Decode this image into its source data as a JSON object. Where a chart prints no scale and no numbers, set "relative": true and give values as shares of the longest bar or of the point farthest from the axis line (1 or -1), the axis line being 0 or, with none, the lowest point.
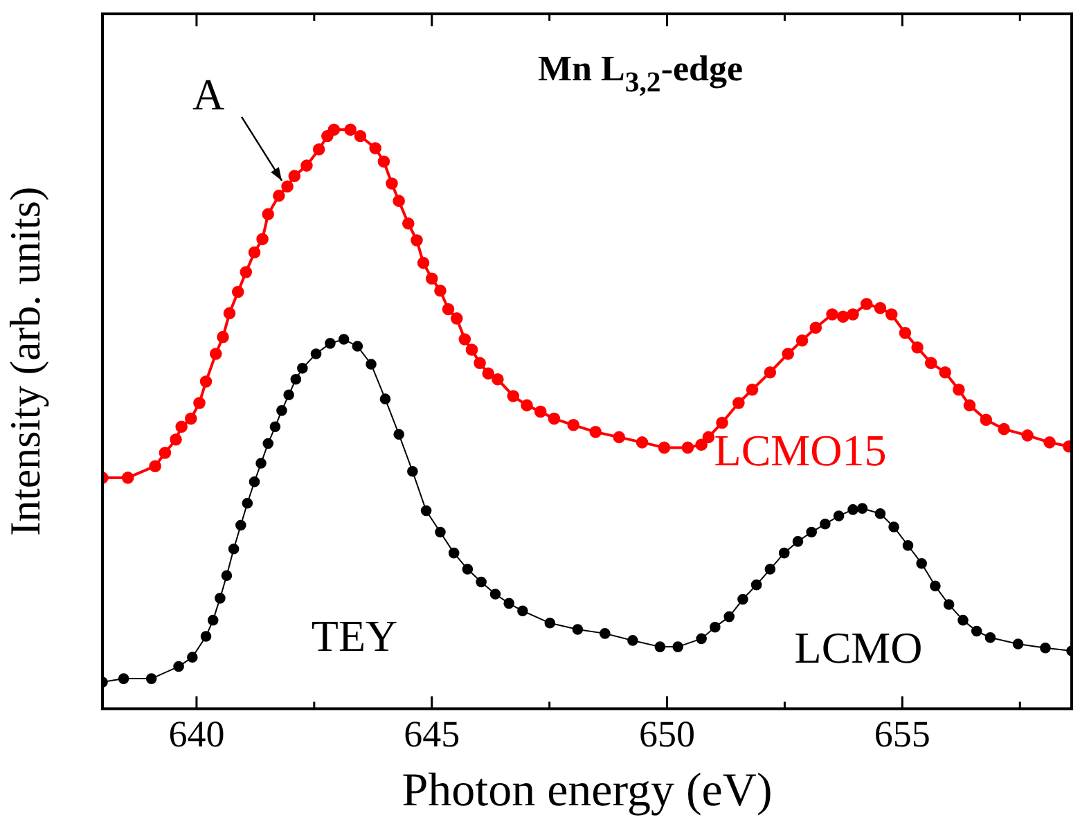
{
  "chart_data": {
    "type": "line",
    "title": "Mn L$_{3,2}$-edge",
    "xlabel": "Photon energy (eV)",
    "ylabel": "Intensity (arb. units)",
    "relative": true,
    "xlim": [
      638,
      658.6
    ],
    "xticks": [
      640,
      {
        "value": 642.5,
        "label": null
      },
      645,
      {
        "value": 647.5,
        "label": null
      },
      650,
      {
        "value": 652.5,
        "label": null
      },
      655,
      {
        "value": 657.5,
        "label": null
      }
    ],
    "grid": false,
    "legend": false,
    "marker": "circle",
    "line_style": "solid",
    "annotations": [
      {
        "text": "A",
        "x": 641.9,
        "y": 0.9
      },
      "TEY"
    ],
    "series": [
      {
        "name": "LCMO15",
        "color": "#ff0000",
        "x": [
          638.0,
          638.54,
          639.12,
          639.33,
          639.56,
          639.68,
          639.88,
          640.06,
          640.2,
          640.41,
          640.56,
          640.7,
          640.88,
          641.05,
          641.23,
          641.4,
          641.52,
          641.75,
          641.93,
          642.08,
          642.34,
          642.6,
          642.78,
          642.92,
          643.27,
          643.48,
          643.8,
          643.98,
          644.15,
          644.3,
          644.5,
          644.68,
          644.82,
          645.0,
          645.18,
          645.35,
          645.53,
          645.7,
          645.85,
          646.02,
          646.2,
          646.4,
          646.73,
          647.02,
          647.31,
          647.6,
          648.01,
          648.48,
          648.98,
          649.47,
          649.94,
          650.44,
          650.73,
          650.88,
          651.17,
          651.52,
          651.81,
          652.19,
          652.57,
          652.87,
          653.16,
          653.51,
          653.74,
          653.95,
          654.24,
          654.53,
          654.77,
          655.06,
          655.32,
          655.61,
          655.91,
          656.2,
          656.43,
          656.78,
          657.16,
          657.66,
          658.13,
          658.54
        ],
        "values": [
          0.399,
          0.399,
          0.419,
          0.442,
          0.465,
          0.487,
          0.501,
          0.528,
          0.565,
          0.613,
          0.642,
          0.683,
          0.72,
          0.754,
          0.788,
          0.811,
          0.854,
          0.886,
          0.902,
          0.92,
          0.938,
          0.966,
          0.989,
          1.0,
          1.0,
          0.989,
          0.968,
          0.945,
          0.907,
          0.877,
          0.838,
          0.809,
          0.77,
          0.743,
          0.722,
          0.69,
          0.674,
          0.638,
          0.62,
          0.597,
          0.579,
          0.569,
          0.54,
          0.524,
          0.513,
          0.501,
          0.49,
          0.478,
          0.469,
          0.46,
          0.451,
          0.451,
          0.456,
          0.469,
          0.494,
          0.528,
          0.551,
          0.581,
          0.613,
          0.636,
          0.658,
          0.681,
          0.677,
          0.681,
          0.699,
          0.692,
          0.681,
          0.649,
          0.624,
          0.597,
          0.581,
          0.551,
          0.524,
          0.499,
          0.483,
          0.472,
          0.46,
          0.453
        ]
      },
      {
        "name": "LCMO",
        "color": "#000000",
        "x": [
          638.0,
          638.45,
          639.04,
          639.62,
          639.91,
          640.2,
          640.35,
          640.5,
          640.64,
          640.79,
          640.94,
          641.08,
          641.23,
          641.37,
          641.52,
          641.67,
          641.81,
          641.96,
          642.11,
          642.25,
          642.54,
          642.84,
          643.13,
          643.42,
          643.71,
          644.01,
          644.3,
          644.59,
          644.88,
          645.18,
          645.47,
          645.76,
          646.05,
          646.35,
          646.64,
          646.93,
          647.51,
          648.1,
          648.68,
          649.27,
          649.85,
          650.23,
          650.73,
          651.02,
          651.32,
          651.61,
          651.9,
          652.19,
          652.49,
          652.78,
          653.07,
          653.36,
          653.65,
          653.95,
          654.15,
          654.53,
          654.82,
          655.12,
          655.41,
          655.7,
          655.99,
          656.29,
          656.58,
          656.87,
          657.46,
          658.04,
          658.6
        ],
        "values": [
          0.046,
          0.052,
          0.052,
          0.073,
          0.089,
          0.125,
          0.153,
          0.191,
          0.23,
          0.276,
          0.317,
          0.355,
          0.392,
          0.424,
          0.458,
          0.487,
          0.515,
          0.542,
          0.569,
          0.588,
          0.613,
          0.631,
          0.638,
          0.626,
          0.595,
          0.535,
          0.474,
          0.41,
          0.342,
          0.305,
          0.269,
          0.241,
          0.219,
          0.198,
          0.182,
          0.169,
          0.148,
          0.137,
          0.13,
          0.118,
          0.107,
          0.107,
          0.121,
          0.141,
          0.159,
          0.189,
          0.214,
          0.241,
          0.269,
          0.289,
          0.305,
          0.319,
          0.333,
          0.344,
          0.346,
          0.337,
          0.314,
          0.282,
          0.251,
          0.212,
          0.18,
          0.153,
          0.134,
          0.123,
          0.112,
          0.105,
          0.1
        ]
      }
    ]
  }
}
